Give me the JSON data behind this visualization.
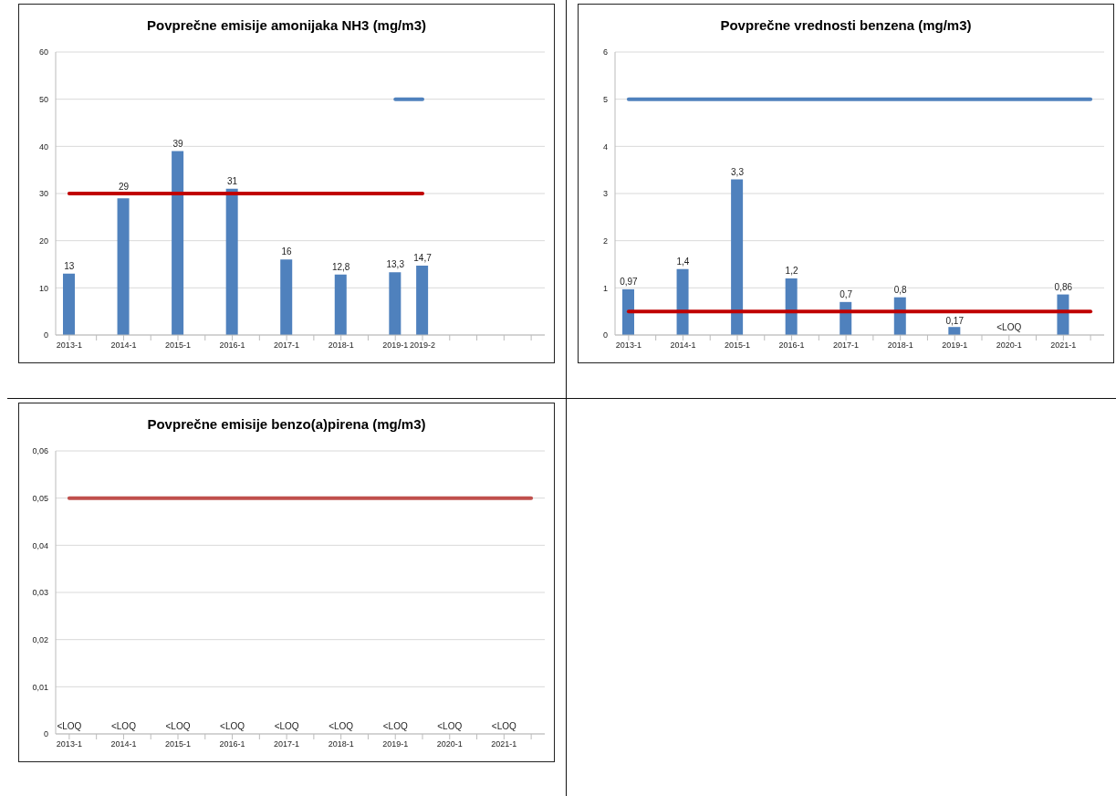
{
  "chart_data": [
    {
      "type": "bar",
      "title": "Povprečne emisije amonijaka NH3 (mg/m3)",
      "categories": [
        "2013-1",
        null,
        "2014-1",
        null,
        "2015-1",
        null,
        "2016-1",
        null,
        "2017-1",
        null,
        "2018-1",
        null,
        "2019-1",
        "2019-2",
        null,
        null,
        null,
        null
      ],
      "ylim": [
        0,
        60
      ],
      "yticks": [
        0,
        10,
        20,
        30,
        40,
        50,
        60
      ],
      "grid": "y",
      "legend": false,
      "series": [
        {
          "color": "#4f81bd",
          "values": [
            13,
            null,
            29,
            null,
            39,
            null,
            31,
            null,
            16,
            null,
            12.8,
            null,
            13.3,
            14.7,
            null,
            null,
            null,
            null
          ],
          "value_labels": [
            "13",
            null,
            "29",
            null,
            "39",
            null,
            "31",
            null,
            "16",
            null,
            "12,8",
            null,
            "13,3",
            "14,7",
            null,
            null,
            null,
            null
          ]
        },
        {
          "type": "line",
          "color": "#c00000",
          "values": [
            30,
            30,
            30,
            30,
            30,
            30,
            30,
            30,
            30,
            30,
            30,
            30,
            30,
            30,
            null,
            null,
            null,
            null
          ]
        },
        {
          "type": "line",
          "color": "#4f81bd",
          "values": [
            null,
            null,
            null,
            null,
            null,
            null,
            null,
            null,
            null,
            null,
            null,
            null,
            50,
            50,
            null,
            null,
            null,
            null
          ]
        }
      ]
    },
    {
      "type": "bar",
      "title": "Povprečne vrednosti benzena (mg/m3)",
      "categories": [
        "2013-1",
        null,
        "2014-1",
        null,
        "2015-1",
        null,
        "2016-1",
        null,
        "2017-1",
        null,
        "2018-1",
        null,
        "2019-1",
        null,
        "2020-1",
        null,
        "2021-1",
        null
      ],
      "ylim": [
        0,
        6
      ],
      "yticks": [
        0,
        1,
        2,
        3,
        4,
        5,
        6
      ],
      "grid": "y",
      "legend": false,
      "series": [
        {
          "color": "#4f81bd",
          "values": [
            0.97,
            null,
            1.4,
            null,
            3.3,
            null,
            1.2,
            null,
            0.7,
            null,
            0.8,
            null,
            0.17,
            null,
            null,
            null,
            0.86,
            null
          ],
          "value_labels": [
            "0,97",
            null,
            "1,4",
            null,
            "3,3",
            null,
            "1,2",
            null,
            "0,7",
            null,
            "0,8",
            null,
            "0,17",
            null,
            "<LOQ",
            null,
            "0,86",
            null
          ]
        },
        {
          "type": "line",
          "color": "#4f81bd",
          "values": [
            5,
            5,
            5,
            5,
            5,
            5,
            5,
            5,
            5,
            5,
            5,
            5,
            5,
            5,
            5,
            5,
            5,
            5
          ]
        },
        {
          "type": "line",
          "color": "#c00000",
          "values": [
            0.5,
            0.5,
            0.5,
            0.5,
            0.5,
            0.5,
            0.5,
            0.5,
            0.5,
            0.5,
            0.5,
            0.5,
            0.5,
            0.5,
            0.5,
            0.5,
            0.5,
            0.5
          ]
        }
      ]
    },
    {
      "type": "bar",
      "title": "Povprečne emisije benzo(a)pirena (mg/m3)",
      "categories": [
        "2013-1",
        null,
        "2014-1",
        null,
        "2015-1",
        null,
        "2016-1",
        null,
        "2017-1",
        null,
        "2018-1",
        null,
        "2019-1",
        null,
        "2020-1",
        null,
        "2021-1",
        null
      ],
      "ylim": [
        0,
        0.06
      ],
      "yticks": [
        0,
        {
          "value": 0.01,
          "label": "0,01"
        },
        {
          "value": 0.02,
          "label": "0,02"
        },
        {
          "value": 0.03,
          "label": "0,03"
        },
        {
          "value": 0.04,
          "label": "0,04"
        },
        {
          "value": 0.05,
          "label": "0,05"
        },
        {
          "value": 0.06,
          "label": "0,06"
        }
      ],
      "grid": "y",
      "legend": false,
      "series": [
        {
          "color": "#4f81bd",
          "values": [
            null,
            null,
            null,
            null,
            null,
            null,
            null,
            null,
            null,
            null,
            null,
            null,
            null,
            null,
            null,
            null,
            null,
            null
          ],
          "value_labels": [
            "<LOQ",
            null,
            "<LOQ",
            null,
            "<LOQ",
            null,
            "<LOQ",
            null,
            "<LOQ",
            null,
            "<LOQ",
            null,
            "<LOQ",
            null,
            "<LOQ",
            null,
            "<LOQ",
            null
          ]
        },
        {
          "type": "line",
          "color": "#c0504d",
          "values": [
            0.05,
            0.05,
            0.05,
            0.05,
            0.05,
            0.05,
            0.05,
            0.05,
            0.05,
            0.05,
            0.05,
            0.05,
            0.05,
            0.05,
            0.05,
            0.05,
            0.05,
            0.05
          ]
        }
      ]
    }
  ]
}
